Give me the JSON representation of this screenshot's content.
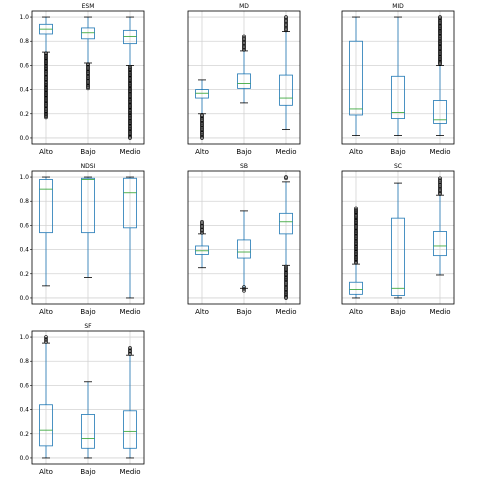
{
  "chart_data": [
    {
      "type": "box",
      "title": "ESM",
      "categories": [
        "Alto",
        "Bajo",
        "Medio"
      ],
      "ylim": [
        -0.05,
        1.05
      ],
      "yticks": [
        "0.0",
        "0.2",
        "0.4",
        "0.6",
        "0.8",
        "1.0"
      ],
      "grid": true,
      "series": [
        {
          "category": "Alto",
          "whisker_low": 0.71,
          "q1": 0.86,
          "median": 0.9,
          "q3": 0.94,
          "whisker_high": 1.0,
          "outliers_low": [
            0.17,
            0.7
          ]
        },
        {
          "category": "Bajo",
          "whisker_low": 0.62,
          "q1": 0.82,
          "median": 0.87,
          "q3": 0.91,
          "whisker_high": 1.0,
          "outliers_low": [
            0.41,
            0.61
          ]
        },
        {
          "category": "Medio",
          "whisker_low": 0.6,
          "q1": 0.78,
          "median": 0.84,
          "q3": 0.89,
          "whisker_high": 1.0,
          "outliers_low": [
            0.0,
            0.59
          ]
        }
      ]
    },
    {
      "type": "box",
      "title": "MD",
      "categories": [
        "Alto",
        "Bajo",
        "Medio"
      ],
      "ylim": [
        -0.05,
        1.05
      ],
      "yticks": [],
      "grid": true,
      "series": [
        {
          "category": "Alto",
          "whisker_low": 0.2,
          "q1": 0.33,
          "median": 0.37,
          "q3": 0.4,
          "whisker_high": 0.48,
          "outliers_low": [
            0.0,
            0.19
          ]
        },
        {
          "category": "Bajo",
          "whisker_low": 0.29,
          "q1": 0.41,
          "median": 0.45,
          "q3": 0.53,
          "whisker_high": 0.72,
          "outliers_high": [
            0.73,
            0.84
          ]
        },
        {
          "category": "Medio",
          "whisker_low": 0.07,
          "q1": 0.27,
          "median": 0.33,
          "q3": 0.52,
          "whisker_high": 0.88,
          "outliers_high": [
            0.89,
            1.0
          ]
        }
      ]
    },
    {
      "type": "box",
      "title": "MID",
      "categories": [
        "Alto",
        "Bajo",
        "Medio"
      ],
      "ylim": [
        -0.05,
        1.05
      ],
      "yticks": [],
      "grid": true,
      "series": [
        {
          "category": "Alto",
          "whisker_low": 0.02,
          "q1": 0.19,
          "median": 0.24,
          "q3": 0.8,
          "whisker_high": 1.0
        },
        {
          "category": "Bajo",
          "whisker_low": 0.02,
          "q1": 0.16,
          "median": 0.21,
          "q3": 0.51,
          "whisker_high": 1.0
        },
        {
          "category": "Medio",
          "whisker_low": 0.02,
          "q1": 0.12,
          "median": 0.15,
          "q3": 0.31,
          "whisker_high": 0.6,
          "outliers_high": [
            0.61,
            1.0
          ]
        }
      ]
    },
    {
      "type": "box",
      "title": "NDSI",
      "categories": [
        "Alto",
        "Bajo",
        "Medio"
      ],
      "ylim": [
        -0.05,
        1.05
      ],
      "yticks": [
        "0.0",
        "0.2",
        "0.4",
        "0.6",
        "0.8",
        "1.0"
      ],
      "grid": true,
      "series": [
        {
          "category": "Alto",
          "whisker_low": 0.1,
          "q1": 0.54,
          "median": 0.9,
          "q3": 0.98,
          "whisker_high": 1.0
        },
        {
          "category": "Bajo",
          "whisker_low": 0.17,
          "q1": 0.54,
          "median": 0.98,
          "q3": 0.99,
          "whisker_high": 1.0
        },
        {
          "category": "Medio",
          "whisker_low": 0.0,
          "q1": 0.58,
          "median": 0.87,
          "q3": 0.99,
          "whisker_high": 1.0
        }
      ]
    },
    {
      "type": "box",
      "title": "SB",
      "categories": [
        "Alto",
        "Bajo",
        "Medio"
      ],
      "ylim": [
        -0.05,
        1.05
      ],
      "yticks": [],
      "grid": true,
      "series": [
        {
          "category": "Alto",
          "whisker_low": 0.25,
          "q1": 0.36,
          "median": 0.39,
          "q3": 0.43,
          "whisker_high": 0.53,
          "outliers_high": [
            0.54,
            0.63
          ]
        },
        {
          "category": "Bajo",
          "whisker_low": 0.08,
          "q1": 0.33,
          "median": 0.38,
          "q3": 0.48,
          "whisker_high": 0.72,
          "outliers_low": [
            0.06,
            0.09
          ]
        },
        {
          "category": "Medio",
          "whisker_low": 0.27,
          "q1": 0.53,
          "median": 0.63,
          "q3": 0.7,
          "whisker_high": 0.96,
          "outliers_low": [
            0.0,
            0.26
          ],
          "outliers_high": [
            0.99,
            1.0
          ]
        }
      ]
    },
    {
      "type": "box",
      "title": "SC",
      "categories": [
        "Alto",
        "Bajo",
        "Medio"
      ],
      "ylim": [
        -0.05,
        1.05
      ],
      "yticks": [],
      "grid": true,
      "series": [
        {
          "category": "Alto",
          "whisker_low": 0.0,
          "q1": 0.03,
          "median": 0.07,
          "q3": 0.13,
          "whisker_high": 0.28,
          "outliers_high": [
            0.29,
            0.74
          ]
        },
        {
          "category": "Bajo",
          "whisker_low": 0.0,
          "q1": 0.02,
          "median": 0.08,
          "q3": 0.66,
          "whisker_high": 0.95
        },
        {
          "category": "Medio",
          "whisker_low": 0.19,
          "q1": 0.35,
          "median": 0.43,
          "q3": 0.55,
          "whisker_high": 0.85,
          "outliers_high": [
            0.86,
            0.99
          ]
        }
      ]
    },
    {
      "type": "box",
      "title": "SF",
      "categories": [
        "Alto",
        "Bajo",
        "Medio"
      ],
      "ylim": [
        -0.05,
        1.05
      ],
      "yticks": [
        "0.0",
        "0.2",
        "0.4",
        "0.6",
        "0.8",
        "1.0"
      ],
      "grid": true,
      "series": [
        {
          "category": "Alto",
          "whisker_low": 0.0,
          "q1": 0.1,
          "median": 0.23,
          "q3": 0.44,
          "whisker_high": 0.95,
          "outliers_high": [
            0.96,
            1.0
          ]
        },
        {
          "category": "Bajo",
          "whisker_low": 0.0,
          "q1": 0.08,
          "median": 0.16,
          "q3": 0.36,
          "whisker_high": 0.63
        },
        {
          "category": "Medio",
          "whisker_low": 0.0,
          "q1": 0.08,
          "median": 0.22,
          "q3": 0.39,
          "whisker_high": 0.85,
          "outliers_high": [
            0.86,
            0.91
          ]
        }
      ]
    }
  ]
}
